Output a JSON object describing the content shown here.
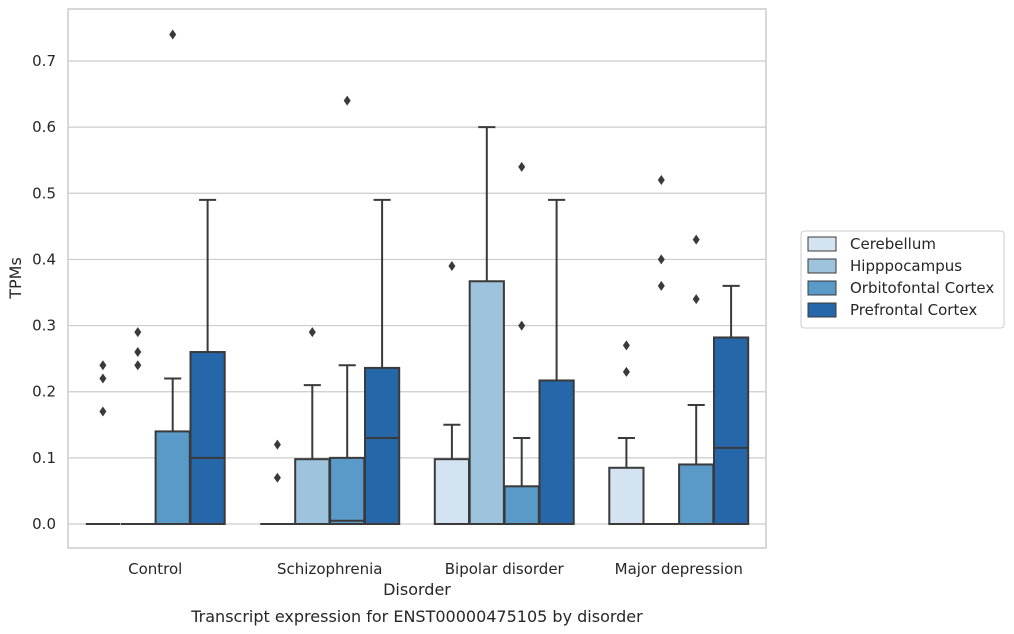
{
  "chart_data": {
    "type": "boxplot",
    "title": "",
    "caption": "Transcript expression for ENST00000475105 by disorder",
    "xlabel": "Disorder",
    "ylabel": "TPMs",
    "ylim": [
      -0.036,
      0.777
    ],
    "yticks": [
      0.0,
      0.1,
      0.2,
      0.3,
      0.4,
      0.5,
      0.6,
      0.7
    ],
    "ytick_labels": [
      "0.0",
      "0.1",
      "0.2",
      "0.3",
      "0.4",
      "0.5",
      "0.6",
      "0.7"
    ],
    "grid": "horizontal",
    "legend_position": "right",
    "categories": [
      "Control",
      "Schizophrenia",
      "Bipolar disorder",
      "Major depression"
    ],
    "series": [
      {
        "name": "Cerebellum",
        "color": "#d4e3f1",
        "boxes": [
          {
            "category": "Control",
            "q1": 0.0,
            "median": 0.0,
            "q3": 0.0,
            "whisker_low": 0.0,
            "whisker_high": 0.0,
            "outliers": [
              0.17,
              0.22,
              0.24
            ]
          },
          {
            "category": "Schizophrenia",
            "q1": 0.0,
            "median": 0.0,
            "q3": 0.0,
            "whisker_low": 0.0,
            "whisker_high": 0.0,
            "outliers": [
              0.07,
              0.12
            ]
          },
          {
            "category": "Bipolar disorder",
            "q1": 0.0,
            "median": 0.0,
            "q3": 0.098,
            "whisker_low": 0.0,
            "whisker_high": 0.15,
            "outliers": [
              0.39
            ]
          },
          {
            "category": "Major depression",
            "q1": 0.0,
            "median": 0.0,
            "q3": 0.085,
            "whisker_low": 0.0,
            "whisker_high": 0.13,
            "outliers": [
              0.23,
              0.27
            ]
          }
        ]
      },
      {
        "name": "Hipppocampus",
        "color": "#9dc3dd",
        "boxes": [
          {
            "category": "Control",
            "q1": 0.0,
            "median": 0.0,
            "q3": 0.0,
            "whisker_low": 0.0,
            "whisker_high": 0.0,
            "outliers": [
              0.24,
              0.26,
              0.29
            ]
          },
          {
            "category": "Schizophrenia",
            "q1": 0.0,
            "median": 0.0,
            "q3": 0.098,
            "whisker_low": 0.0,
            "whisker_high": 0.21,
            "outliers": [
              0.29
            ]
          },
          {
            "category": "Bipolar disorder",
            "q1": 0.0,
            "median": 0.0,
            "q3": 0.367,
            "whisker_low": 0.0,
            "whisker_high": 0.6,
            "outliers": []
          },
          {
            "category": "Major depression",
            "q1": 0.0,
            "median": 0.0,
            "q3": 0.0,
            "whisker_low": 0.0,
            "whisker_high": 0.0,
            "outliers": [
              0.36,
              0.4,
              0.52
            ]
          }
        ]
      },
      {
        "name": "Orbitofontal Cortex",
        "color": "#5a9ac8",
        "boxes": [
          {
            "category": "Control",
            "q1": 0.0,
            "median": 0.0,
            "q3": 0.14,
            "whisker_low": 0.0,
            "whisker_high": 0.22,
            "outliers": [
              0.74
            ]
          },
          {
            "category": "Schizophrenia",
            "q1": 0.0,
            "median": 0.005,
            "q3": 0.1,
            "whisker_low": 0.0,
            "whisker_high": 0.24,
            "outliers": [
              0.64
            ]
          },
          {
            "category": "Bipolar disorder",
            "q1": 0.0,
            "median": 0.0,
            "q3": 0.057,
            "whisker_low": 0.0,
            "whisker_high": 0.13,
            "outliers": [
              0.3,
              0.54
            ]
          },
          {
            "category": "Major depression",
            "q1": 0.0,
            "median": 0.0,
            "q3": 0.09,
            "whisker_low": 0.0,
            "whisker_high": 0.18,
            "outliers": [
              0.34,
              0.43
            ]
          }
        ]
      },
      {
        "name": "Prefrontal Cortex",
        "color": "#2667aa",
        "boxes": [
          {
            "category": "Control",
            "q1": 0.0,
            "median": 0.1,
            "q3": 0.26,
            "whisker_low": 0.0,
            "whisker_high": 0.49,
            "outliers": []
          },
          {
            "category": "Schizophrenia",
            "q1": 0.0,
            "median": 0.13,
            "q3": 0.236,
            "whisker_low": 0.0,
            "whisker_high": 0.49,
            "outliers": []
          },
          {
            "category": "Bipolar disorder",
            "q1": 0.0,
            "median": 0.0,
            "q3": 0.217,
            "whisker_low": 0.0,
            "whisker_high": 0.49,
            "outliers": []
          },
          {
            "category": "Major depression",
            "q1": 0.0,
            "median": 0.115,
            "q3": 0.282,
            "whisker_low": 0.0,
            "whisker_high": 0.36,
            "outliers": []
          }
        ]
      }
    ]
  }
}
